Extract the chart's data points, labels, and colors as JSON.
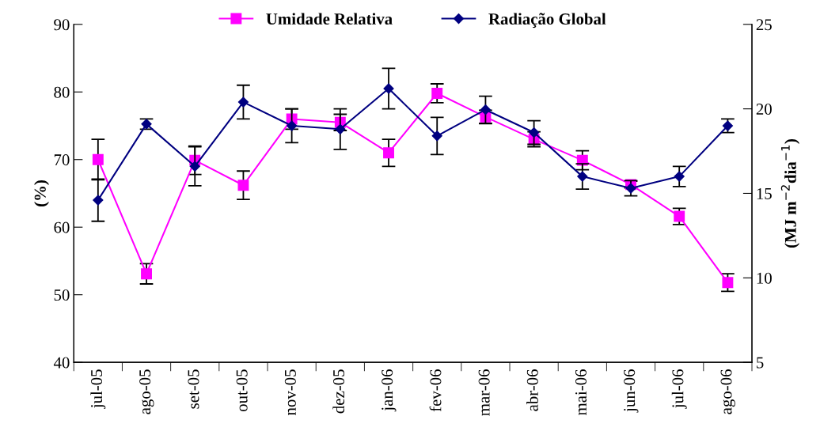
{
  "chart_data": {
    "type": "line",
    "ylabel": "(%)",
    "y2label": "(MJ m$^{−2}$dia$^{−1}$)",
    "categories": [
      "jul-05",
      "ago-05",
      "set-05",
      "out-05",
      "nov-05",
      "dez-05",
      "jan-06",
      "fev-06",
      "mar-06",
      "abr-06",
      "mai-06",
      "jun-06",
      "jul-06",
      "ago-06"
    ],
    "ylim": [
      40,
      90
    ],
    "yticks": [
      40,
      50,
      60,
      70,
      80,
      90
    ],
    "y2lim": [
      5,
      25
    ],
    "y2ticks": [
      5,
      10,
      15,
      20,
      25
    ],
    "legend": "top",
    "grid": false,
    "series": [
      {
        "name": "Umidade Relativa",
        "color": "#ff00ff",
        "marker": "square",
        "values": [
          70.0,
          53.1,
          69.9,
          66.2,
          76.0,
          75.5,
          71.0,
          79.8,
          76.3,
          73.0,
          69.9,
          66.3,
          61.6,
          51.8
        ],
        "errors": [
          3.0,
          1.5,
          2.1,
          2.1,
          1.5,
          1.2,
          2.0,
          1.4,
          1.0,
          1.1,
          1.4,
          0.5,
          1.2,
          1.3
        ]
      },
      {
        "name": "Radiação Global",
        "color": "#000080",
        "marker": "diamond",
        "axis": "y2",
        "values": [
          14.6,
          19.1,
          16.6,
          20.4,
          19.0,
          18.8,
          21.2,
          18.4,
          19.95,
          18.6,
          16.0,
          15.3,
          16.0,
          19.0
        ],
        "errors": [
          1.25,
          0.3,
          1.15,
          1.0,
          1.0,
          1.2,
          1.2,
          1.1,
          0.8,
          0.7,
          0.75,
          0.45,
          0.6,
          0.4
        ]
      }
    ]
  }
}
